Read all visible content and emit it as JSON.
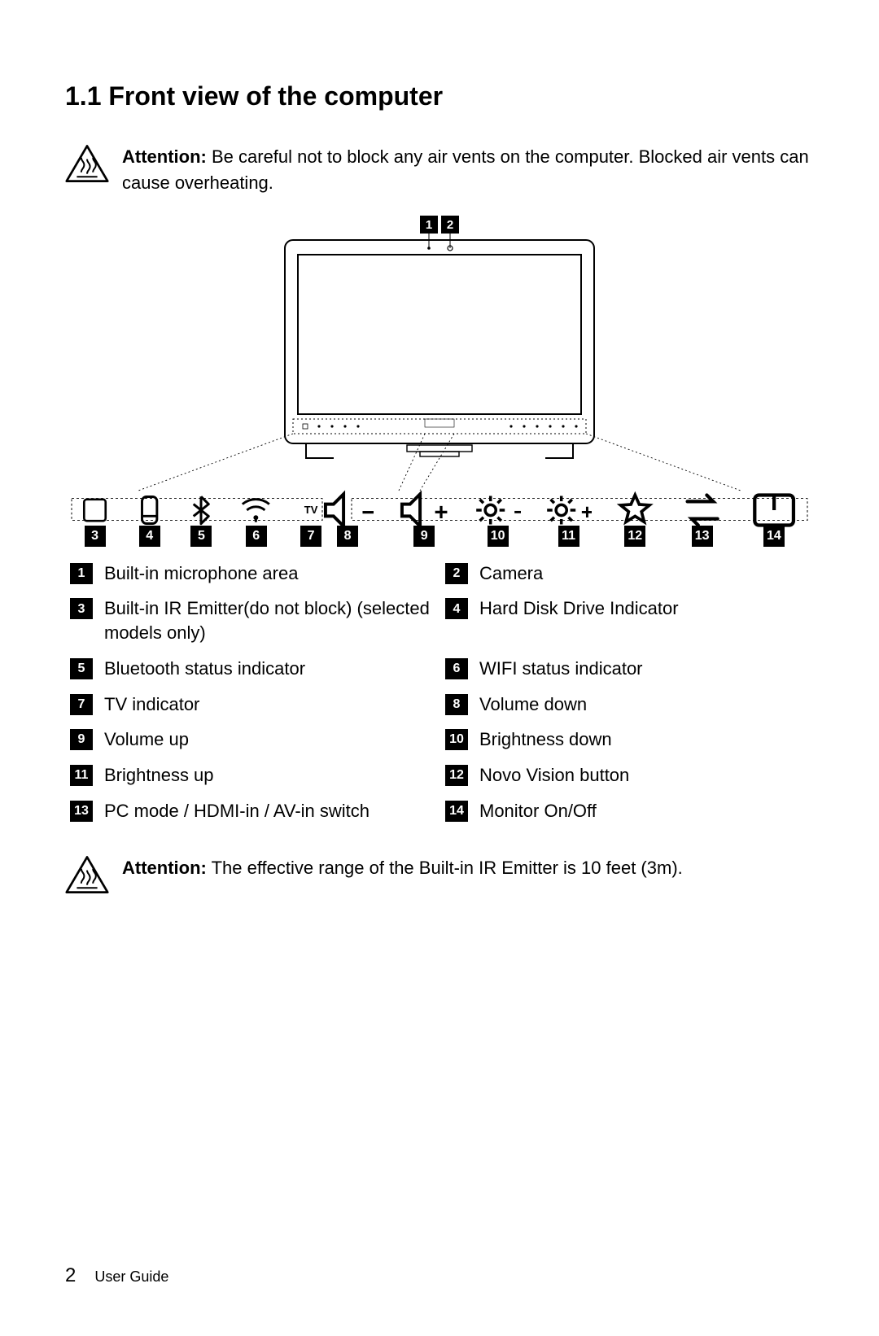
{
  "section": {
    "number": "1.1",
    "title": "Front view of the computer"
  },
  "attention1": {
    "label": "Attention:",
    "text": "Be careful not to block any air vents on the computer. Blocked air vents can cause overheating."
  },
  "attention2": {
    "label": "Attention:",
    "text": "The effective range of the Built-in IR Emitter is 10 feet (3m)."
  },
  "top_callouts": [
    "1",
    "2"
  ],
  "strip": {
    "left": [
      {
        "num": "3",
        "icon": "ir-window"
      },
      {
        "num": "4",
        "icon": "hdd"
      },
      {
        "num": "5",
        "icon": "bluetooth"
      },
      {
        "num": "6",
        "icon": "wifi"
      },
      {
        "num": "7",
        "icon": "tv",
        "text": "TV"
      }
    ],
    "right": [
      {
        "num": "8",
        "icon": "vol-down"
      },
      {
        "num": "9",
        "icon": "vol-up"
      },
      {
        "num": "10",
        "icon": "bright-down"
      },
      {
        "num": "11",
        "icon": "bright-up"
      },
      {
        "num": "12",
        "icon": "novo"
      },
      {
        "num": "13",
        "icon": "mode-switch"
      },
      {
        "num": "14",
        "icon": "monitor-off"
      }
    ]
  },
  "legend": [
    {
      "num": "1",
      "text": "Built-in microphone area"
    },
    {
      "num": "2",
      "text": "Camera"
    },
    {
      "num": "3",
      "text": "Built-in IR Emitter(do not block) (selected models only)"
    },
    {
      "num": "4",
      "text": "Hard Disk Drive Indicator"
    },
    {
      "num": "5",
      "text": "Bluetooth status indicator"
    },
    {
      "num": "6",
      "text": "WIFI status indicator"
    },
    {
      "num": "7",
      "text": "TV indicator"
    },
    {
      "num": "8",
      "text": "Volume down"
    },
    {
      "num": "9",
      "text": "Volume up"
    },
    {
      "num": "10",
      "text": "Brightness down"
    },
    {
      "num": "11",
      "text": "Brightness up"
    },
    {
      "num": "12",
      "text": "Novo Vision button"
    },
    {
      "num": "13",
      "text": "PC mode / HDMI-in / AV-in switch"
    },
    {
      "num": "14",
      "text": "Monitor On/Off"
    }
  ],
  "footer": {
    "page": "2",
    "doc": "User Guide"
  },
  "colors": {
    "text": "#000000",
    "bg": "#ffffff",
    "box": "#000000"
  }
}
